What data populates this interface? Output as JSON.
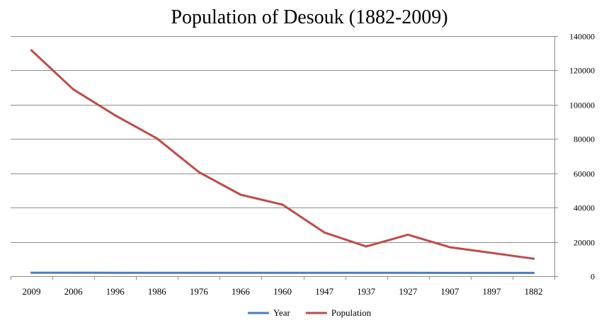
{
  "chart_data": {
    "type": "line",
    "title": "Population of Desouk (1882-2009)",
    "xlabel": "",
    "ylabel": "",
    "categories": [
      "2009",
      "2006",
      "1996",
      "1986",
      "1976",
      "1966",
      "1960",
      "1947",
      "1937",
      "1927",
      "1907",
      "1897",
      "1882"
    ],
    "y_ticks": [
      "0",
      "20000",
      "40000",
      "60000",
      "80000",
      "100000",
      "120000",
      "140000"
    ],
    "ylim": [
      0,
      140000
    ],
    "y_axis_side": "right",
    "grid": true,
    "legend_position": "bottom",
    "series": [
      {
        "name": "Year",
        "color": "#4a7eb9",
        "values": [
          2009,
          2006,
          1996,
          1986,
          1976,
          1966,
          1960,
          1947,
          1937,
          1927,
          1907,
          1897,
          1882
        ]
      },
      {
        "name": "Population",
        "color": "#be4b48",
        "values": [
          131700,
          108900,
          93800,
          80300,
          60700,
          47500,
          41700,
          25500,
          17300,
          24200,
          16900,
          13600,
          10200
        ]
      }
    ]
  }
}
